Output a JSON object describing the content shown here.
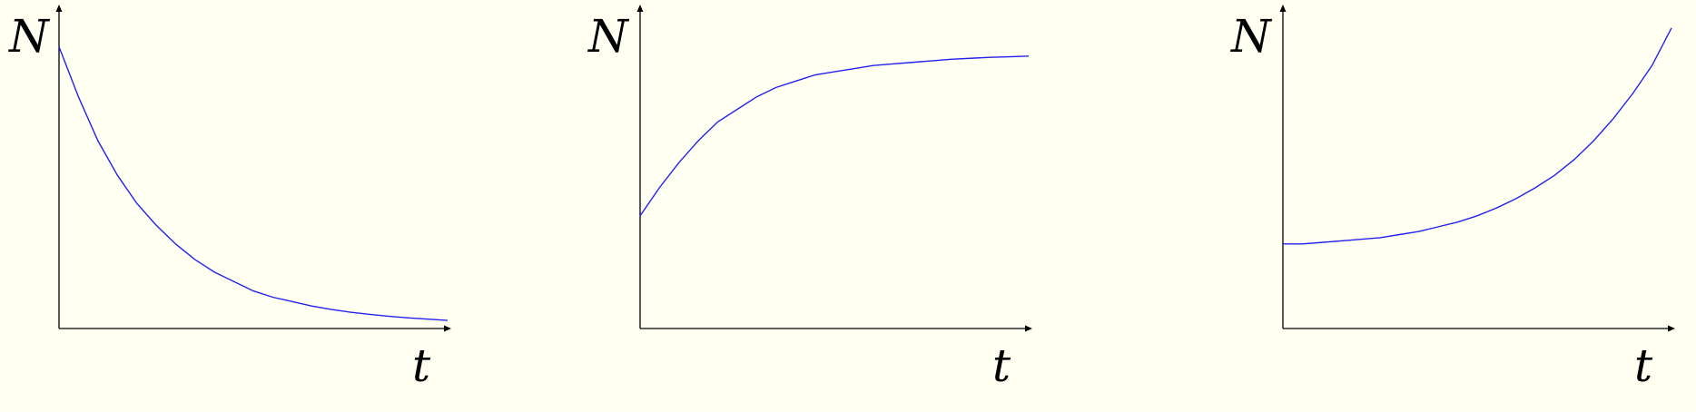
{
  "colors": {
    "background": "#fffff2",
    "axis": "#000000",
    "curve": "#2222ee"
  },
  "chart_data": [
    {
      "type": "line",
      "title": "",
      "xlabel": "t",
      "ylabel": "N",
      "grid": false,
      "xlim": [
        0,
        1
      ],
      "ylim": [
        0,
        1
      ],
      "series": [
        {
          "x": [
            0,
            0.05,
            0.1,
            0.15,
            0.2,
            0.25,
            0.3,
            0.35,
            0.4,
            0.45,
            0.5,
            0.55,
            0.6,
            0.65,
            0.7,
            0.75,
            0.8,
            0.85,
            0.9,
            0.95,
            1.0
          ],
          "y": [
            0.9,
            0.74,
            0.6,
            0.49,
            0.4,
            0.33,
            0.27,
            0.22,
            0.18,
            0.15,
            0.12,
            0.1,
            0.086,
            0.072,
            0.061,
            0.052,
            0.045,
            0.039,
            0.034,
            0.03,
            0.026
          ],
          "color": "#2222ee"
        }
      ]
    },
    {
      "type": "line",
      "title": "",
      "xlabel": "t",
      "ylabel": "N",
      "grid": false,
      "xlim": [
        0,
        1
      ],
      "ylim": [
        0,
        1
      ],
      "series": [
        {
          "x": [
            0,
            0.05,
            0.1,
            0.15,
            0.2,
            0.25,
            0.3,
            0.35,
            0.4,
            0.45,
            0.5,
            0.55,
            0.6,
            0.65,
            0.7,
            0.75,
            0.8,
            0.85,
            0.9,
            0.95,
            1.0
          ],
          "y": [
            0.36,
            0.45,
            0.53,
            0.6,
            0.66,
            0.7,
            0.74,
            0.77,
            0.79,
            0.81,
            0.82,
            0.83,
            0.84,
            0.845,
            0.85,
            0.855,
            0.86,
            0.863,
            0.866,
            0.868,
            0.87
          ],
          "color": "#2222ee"
        }
      ]
    },
    {
      "type": "line",
      "title": "",
      "xlabel": "t",
      "ylabel": "N",
      "grid": false,
      "xlim": [
        0,
        1
      ],
      "ylim": [
        0,
        1
      ],
      "series": [
        {
          "x": [
            0,
            0.05,
            0.1,
            0.15,
            0.2,
            0.25,
            0.3,
            0.35,
            0.4,
            0.45,
            0.5,
            0.55,
            0.6,
            0.65,
            0.7,
            0.75,
            0.8,
            0.85,
            0.9,
            0.95,
            1.0
          ],
          "y": [
            0.27,
            0.27,
            0.275,
            0.28,
            0.285,
            0.29,
            0.3,
            0.31,
            0.325,
            0.34,
            0.36,
            0.385,
            0.415,
            0.45,
            0.49,
            0.54,
            0.6,
            0.67,
            0.75,
            0.84,
            0.96
          ],
          "color": "#2222ee"
        }
      ]
    }
  ]
}
